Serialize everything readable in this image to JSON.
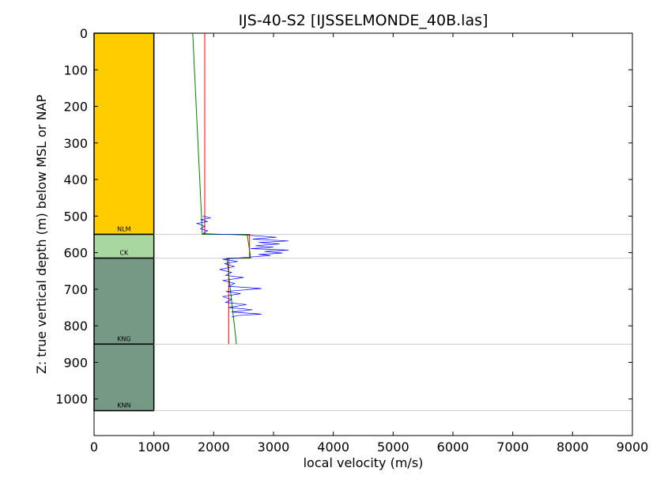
{
  "chart_data": {
    "type": "line",
    "title": "IJS-40-S2 [IJSSELMONDE_40B.las]",
    "xlabel": "local velocity (m/s)",
    "ylabel": "Z: true vertical depth (m) below MSL or NAP",
    "xlim": [
      0,
      9000
    ],
    "ylim": [
      1100,
      0
    ],
    "y_inverted": true,
    "grid": false,
    "x_ticks": [
      0,
      1000,
      2000,
      3000,
      4000,
      5000,
      6000,
      7000,
      8000,
      9000
    ],
    "y_ticks": [
      0,
      100,
      200,
      300,
      400,
      500,
      600,
      700,
      800,
      900,
      1000
    ],
    "layers": [
      {
        "name": "NLM",
        "top": 0,
        "base": 550,
        "color": "#ffcc00"
      },
      {
        "name": "CK",
        "top": 550,
        "base": 615,
        "color": "#a8d8a0"
      },
      {
        "name": "KNG",
        "top": 615,
        "base": 850,
        "color": "#769985"
      },
      {
        "name": "KNN",
        "top": 850,
        "base": 1032,
        "color": "#769985"
      }
    ],
    "layer_column_x": [
      0,
      1000
    ],
    "boundaries": [
      550,
      615,
      850,
      1032
    ],
    "series": [
      {
        "color": "#ff0000",
        "points": [
          [
            1850,
            0
          ],
          [
            1850,
            550
          ],
          [
            2600,
            550
          ],
          [
            2600,
            615
          ],
          [
            2250,
            615
          ],
          [
            2250,
            850
          ]
        ]
      },
      {
        "color": "#008000",
        "points": [
          [
            1650,
            0
          ],
          [
            1810,
            550
          ],
          [
            2560,
            550
          ],
          [
            2620,
            615
          ],
          [
            2220,
            615
          ],
          [
            2380,
            850
          ]
        ]
      },
      {
        "color": "#0000ff",
        "points": [
          [
            1820,
            500
          ],
          [
            1950,
            505
          ],
          [
            1780,
            510
          ],
          [
            1900,
            515
          ],
          [
            1720,
            520
          ],
          [
            1850,
            528
          ],
          [
            1780,
            535
          ],
          [
            1900,
            540
          ],
          [
            1820,
            548
          ],
          [
            2550,
            552
          ],
          [
            3050,
            558
          ],
          [
            2650,
            563
          ],
          [
            3250,
            568
          ],
          [
            2750,
            572
          ],
          [
            3100,
            576
          ],
          [
            2700,
            581
          ],
          [
            3000,
            585
          ],
          [
            2620,
            589
          ],
          [
            3250,
            593
          ],
          [
            2850,
            597
          ],
          [
            3150,
            601
          ],
          [
            2750,
            605
          ],
          [
            2950,
            608
          ],
          [
            2600,
            612
          ],
          [
            2150,
            618
          ],
          [
            2400,
            624
          ],
          [
            2180,
            630
          ],
          [
            2350,
            638
          ],
          [
            2100,
            646
          ],
          [
            2300,
            654
          ],
          [
            2200,
            662
          ],
          [
            2500,
            668
          ],
          [
            2150,
            676
          ],
          [
            2350,
            684
          ],
          [
            2250,
            692
          ],
          [
            2800,
            698
          ],
          [
            2200,
            706
          ],
          [
            2450,
            712
          ],
          [
            2150,
            720
          ],
          [
            2300,
            728
          ],
          [
            2200,
            736
          ],
          [
            2550,
            742
          ],
          [
            2250,
            750
          ],
          [
            2650,
            756
          ],
          [
            2300,
            762
          ],
          [
            2800,
            768
          ],
          [
            2400,
            772
          ],
          [
            2300,
            776
          ]
        ]
      }
    ]
  }
}
